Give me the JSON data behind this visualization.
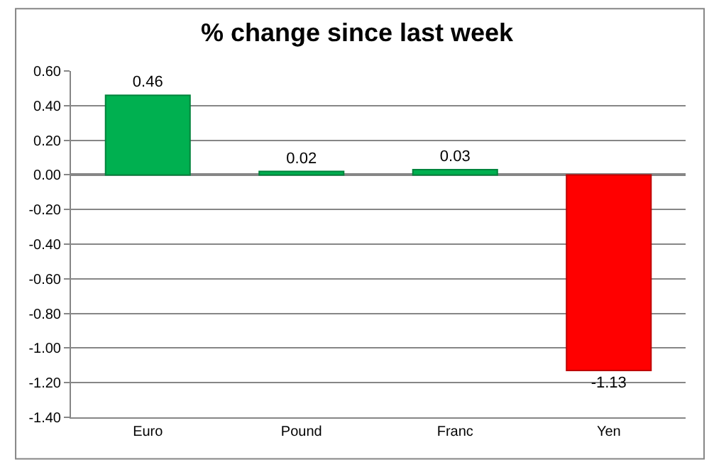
{
  "chart_data": {
    "type": "bar",
    "title": "% change since last week",
    "categories": [
      "Euro",
      "Pound",
      "Franc",
      "Yen"
    ],
    "values": [
      0.46,
      0.02,
      0.03,
      -1.13
    ],
    "colors": [
      "#00b050",
      "#00b050",
      "#00b050",
      "#ff0000"
    ],
    "ylim": [
      -1.4,
      0.6
    ],
    "yticks": [
      {
        "value": 0.6,
        "label": "0.60"
      },
      {
        "value": 0.4,
        "label": "0.40"
      },
      {
        "value": 0.2,
        "label": "0.20"
      },
      {
        "value": 0,
        "label": "0.00"
      },
      {
        "value": -0.2,
        "label": "-0.20"
      },
      {
        "value": -0.4,
        "label": "-0.40"
      },
      {
        "value": -0.6,
        "label": "-0.60"
      },
      {
        "value": -0.8,
        "label": "-0.80"
      },
      {
        "value": -1.0,
        "label": "-1.00"
      },
      {
        "value": -1.2,
        "label": "-1.20"
      },
      {
        "value": -1.4,
        "label": "-1.40"
      }
    ],
    "grid": "y",
    "data_labels": true,
    "legend": false
  }
}
